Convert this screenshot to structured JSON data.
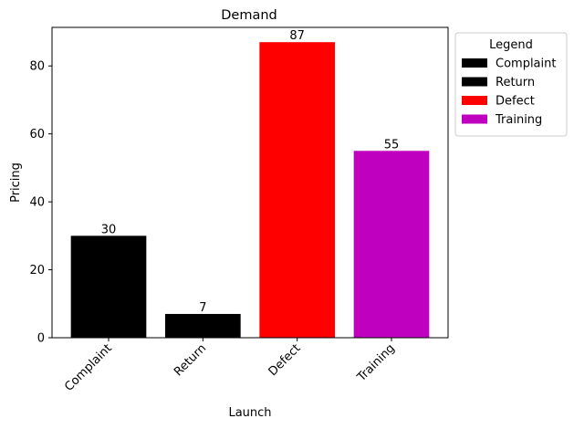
{
  "chart_data": {
    "type": "bar",
    "title": "Demand",
    "xlabel": "Launch",
    "ylabel": "Pricing",
    "categories": [
      "Complaint",
      "Return",
      "Defect",
      "Training"
    ],
    "values": [
      30,
      7,
      87,
      55
    ],
    "colors": [
      "#000000",
      "#000000",
      "#ff0000",
      "#bf00bf"
    ],
    "ylim": [
      0,
      91.35
    ],
    "yticks": [
      0,
      20,
      40,
      60,
      80
    ],
    "grid": false,
    "legend": {
      "title": "Legend",
      "placement": "outside-top-right",
      "entries": [
        {
          "label": "Complaint",
          "color": "#000000"
        },
        {
          "label": "Return",
          "color": "#000000"
        },
        {
          "label": "Defect",
          "color": "#ff0000"
        },
        {
          "label": "Training",
          "color": "#bf00bf"
        }
      ]
    }
  }
}
